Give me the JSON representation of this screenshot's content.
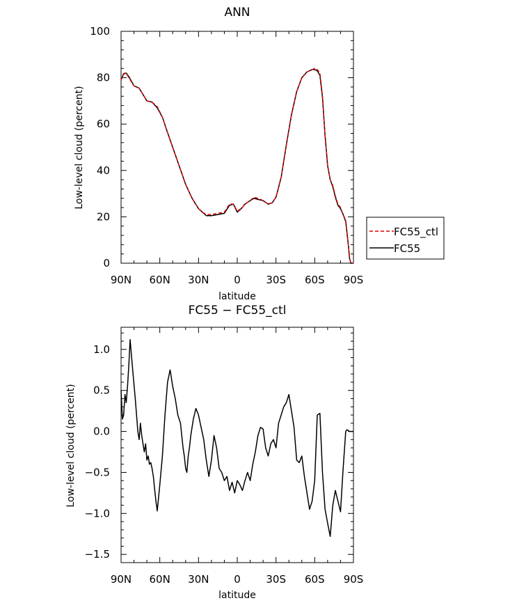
{
  "chart_data": [
    {
      "type": "line",
      "title": "ANN",
      "xlabel": "latitude",
      "ylabel": "Low-level cloud (percent)",
      "xlim": [
        90,
        -90
      ],
      "ylim": [
        0,
        100
      ],
      "xticks": [
        90,
        60,
        30,
        0,
        -30,
        -60,
        -90
      ],
      "xtick_labels": [
        "90N",
        "60N",
        "30N",
        "0",
        "30S",
        "60S",
        "90S"
      ],
      "yticks": [
        0,
        20,
        40,
        60,
        80,
        100
      ],
      "ytick_labels": [
        "0",
        "20",
        "40",
        "60",
        "80",
        "100"
      ],
      "legend_position": "right",
      "series": [
        {
          "name": "FC55_ctl",
          "color": "#e00000",
          "dash": "dashed",
          "x": [
            90,
            88,
            86,
            84,
            80,
            76,
            70,
            66,
            62,
            58,
            55,
            50,
            45,
            40,
            35,
            30,
            27,
            24,
            20,
            15,
            10,
            6,
            3,
            0,
            -3,
            -6,
            -10,
            -13,
            -16,
            -20,
            -24,
            -27,
            -30,
            -34,
            -38,
            -42,
            -46,
            -50,
            -54,
            -58,
            -60,
            -62,
            -64,
            -66,
            -68,
            -70,
            -72,
            -74,
            -76,
            -78,
            -80,
            -82,
            -84,
            -86,
            -87,
            -88,
            -89,
            -90
          ],
          "y": [
            79,
            81.5,
            82,
            80,
            76.5,
            75.5,
            70,
            69.5,
            67.5,
            63,
            58,
            50,
            42,
            34,
            28,
            23.5,
            22,
            21,
            21,
            21.5,
            22,
            25.5,
            25.5,
            22.5,
            23.5,
            25.5,
            27,
            28.5,
            28,
            27,
            25.5,
            26,
            28.5,
            37,
            51,
            64,
            74,
            80,
            82.5,
            83.5,
            84,
            83.5,
            82,
            72,
            55,
            42,
            36,
            33.5,
            29,
            25.5,
            24,
            21,
            18.5,
            8,
            2,
            0,
            0,
            0
          ]
        },
        {
          "name": "FC55",
          "color": "#000000",
          "dash": "solid",
          "x": [
            90,
            88,
            86,
            84,
            80,
            76,
            70,
            66,
            62,
            58,
            55,
            50,
            45,
            40,
            35,
            30,
            27,
            24,
            20,
            15,
            10,
            6,
            3,
            0,
            -3,
            -6,
            -10,
            -13,
            -16,
            -20,
            -24,
            -27,
            -30,
            -34,
            -38,
            -42,
            -46,
            -50,
            -54,
            -58,
            -60,
            -62,
            -64,
            -66,
            -68,
            -70,
            -72,
            -74,
            -76,
            -78,
            -80,
            -82,
            -84,
            -86,
            -87,
            -88,
            -89,
            -90
          ],
          "y": [
            79,
            81.8,
            82,
            80.5,
            76.5,
            75.5,
            70,
            69.5,
            67,
            63,
            58,
            50,
            42,
            34,
            28,
            23.5,
            22,
            20.5,
            20.5,
            21,
            21.5,
            25,
            25.5,
            22,
            23.5,
            25.5,
            27,
            28,
            27.5,
            27,
            25.5,
            26,
            28.5,
            37,
            51,
            64,
            74,
            80,
            82.5,
            83.5,
            83.5,
            83,
            81,
            71.5,
            55,
            42,
            36,
            33,
            28.5,
            25,
            23.5,
            21,
            18,
            8,
            2,
            0,
            0,
            0
          ]
        }
      ]
    },
    {
      "type": "line",
      "title": "FC55 − FC55_ctl",
      "xlabel": "latitude",
      "ylabel": "Low-level cloud (percent)",
      "xlim": [
        90,
        -90
      ],
      "ylim": [
        -1.6,
        1.27
      ],
      "xticks": [
        90,
        60,
        30,
        0,
        -30,
        -60,
        -90
      ],
      "xtick_labels": [
        "90N",
        "60N",
        "30N",
        "0",
        "30S",
        "60S",
        "90S"
      ],
      "yticks": [
        -1.5,
        -1.0,
        -0.5,
        0.0,
        0.5,
        1.0
      ],
      "ytick_labels": [
        "−1.5",
        "−1.0",
        "−0.5",
        "0.0",
        "0.5",
        "1.0"
      ],
      "series": [
        {
          "color": "#000000",
          "dash": "solid",
          "x": [
            90,
            89,
            88,
            87,
            86,
            85,
            84,
            83,
            81,
            79,
            77,
            76,
            75,
            74,
            73,
            72,
            71,
            70,
            69,
            68,
            67,
            66,
            65,
            64,
            63,
            62,
            60,
            58,
            56,
            54,
            52,
            50,
            48,
            46,
            44,
            42,
            41,
            40,
            39,
            38,
            37,
            36,
            34,
            32,
            30,
            28,
            26,
            24,
            22,
            20,
            18,
            16,
            14,
            12,
            10,
            8,
            6,
            4,
            2,
            0,
            -2,
            -4,
            -6,
            -8,
            -10,
            -12,
            -14,
            -16,
            -18,
            -20,
            -22,
            -24,
            -26,
            -28,
            -30,
            -32,
            -34,
            -36,
            -38,
            -40,
            -42,
            -44,
            -46,
            -48,
            -50,
            -52,
            -54,
            -56,
            -58,
            -60,
            -62,
            -64,
            -66,
            -68,
            -70,
            -72,
            -74,
            -76,
            -78,
            -80,
            -82,
            -84,
            -85,
            -86,
            -87,
            -88,
            -89,
            -90
          ],
          "y": [
            0.5,
            0.15,
            0.2,
            0.45,
            0.35,
            0.55,
            0.8,
            1.12,
            0.75,
            0.4,
            0.0,
            -0.1,
            0.1,
            -0.05,
            -0.15,
            -0.25,
            -0.15,
            -0.35,
            -0.3,
            -0.4,
            -0.38,
            -0.45,
            -0.55,
            -0.7,
            -0.85,
            -0.97,
            -0.65,
            -0.3,
            0.2,
            0.6,
            0.75,
            0.55,
            0.4,
            0.2,
            0.1,
            -0.2,
            -0.3,
            -0.45,
            -0.5,
            -0.3,
            -0.2,
            -0.05,
            0.15,
            0.28,
            0.2,
            0.05,
            -0.1,
            -0.35,
            -0.55,
            -0.35,
            -0.05,
            -0.2,
            -0.45,
            -0.5,
            -0.6,
            -0.55,
            -0.72,
            -0.62,
            -0.75,
            -0.6,
            -0.65,
            -0.72,
            -0.6,
            -0.5,
            -0.6,
            -0.4,
            -0.25,
            -0.05,
            0.05,
            0.03,
            -0.2,
            -0.3,
            -0.15,
            -0.1,
            -0.2,
            0.1,
            0.2,
            0.3,
            0.35,
            0.45,
            0.25,
            0.05,
            -0.35,
            -0.38,
            -0.3,
            -0.55,
            -0.75,
            -0.95,
            -0.85,
            -0.6,
            0.2,
            0.22,
            -0.5,
            -0.95,
            -1.12,
            -1.28,
            -0.9,
            -0.72,
            -0.85,
            -0.98,
            -0.45,
            0.0,
            0.02,
            0.01,
            0.0,
            0.0,
            0.0,
            0.0
          ]
        }
      ]
    }
  ]
}
